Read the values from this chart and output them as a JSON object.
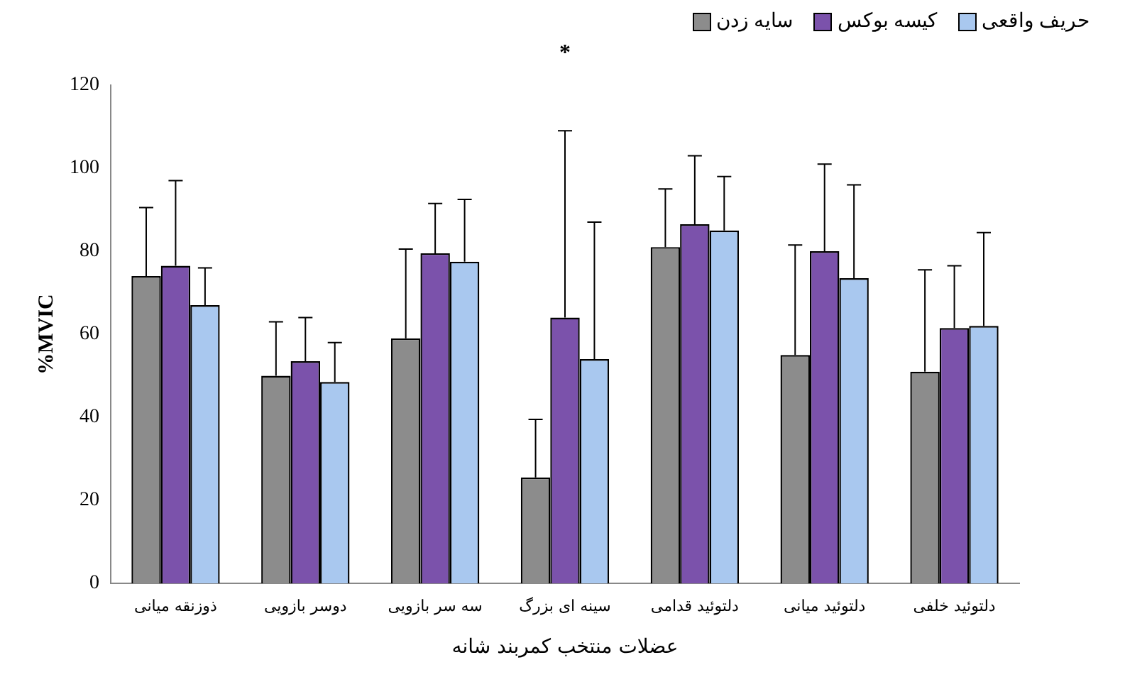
{
  "chart_data": {
    "type": "bar",
    "xlabel": "عضلات منتخب کمربند شانه",
    "ylabel": "%MVIC",
    "categories": [
      "ذوزنقه میانی",
      "دوسر بازویی",
      "سه سر بازویی",
      "سینه ای بزرگ",
      "دلتوئید قدامی",
      "دلتوئید میانی",
      "دلتوئید خلفی"
    ],
    "series": [
      {
        "name": "سایه زدن",
        "color": "#8c8c8c",
        "values": [
          74,
          50,
          59,
          25.5,
          81,
          55,
          51
        ],
        "errors": [
          [
            74,
            90.5
          ],
          [
            50,
            63
          ],
          [
            59,
            80.5
          ],
          [
            25.5,
            39.5
          ],
          [
            81,
            95
          ],
          [
            55,
            81.5
          ],
          [
            51,
            75.5
          ]
        ]
      },
      {
        "name": "کیسه بوکس",
        "color": "#7b52ab",
        "values": [
          76.5,
          53.5,
          79.5,
          64,
          86.5,
          80,
          61.5
        ],
        "errors": [
          [
            76.5,
            97
          ],
          [
            53.5,
            64
          ],
          [
            79.5,
            91.5
          ],
          [
            64,
            109
          ],
          [
            86.5,
            103
          ],
          [
            80,
            101
          ],
          [
            61.5,
            76.5
          ]
        ]
      },
      {
        "name": "حریف واقعی",
        "color": "#a9c8ef",
        "values": [
          67,
          48.5,
          77.5,
          54,
          85,
          73.5,
          62
        ],
        "errors": [
          [
            67,
            76
          ],
          [
            48.5,
            58
          ],
          [
            77.5,
            92.5
          ],
          [
            54,
            87
          ],
          [
            85,
            98
          ],
          [
            73.5,
            96
          ],
          [
            62,
            84.5
          ]
        ]
      }
    ],
    "ylim": [
      0,
      120
    ],
    "yticks": [
      0,
      20,
      40,
      60,
      80,
      100,
      120
    ],
    "grid": false,
    "legend": "top right",
    "annotations": [
      "*"
    ]
  }
}
